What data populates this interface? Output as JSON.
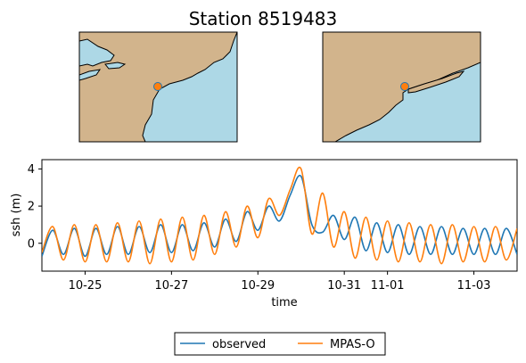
{
  "title": "Station 8519483",
  "colors": {
    "observed": "#1f77b4",
    "model": "#ff7f0e",
    "land": "#d2b48c",
    "water": "#add8e6"
  },
  "maps": [
    {
      "name": "regional-map",
      "marker": "station-marker"
    },
    {
      "name": "local-map",
      "marker": "station-marker"
    }
  ],
  "chart_data": {
    "type": "line",
    "title": "Station 8519483",
    "xlabel": "time",
    "ylabel": "ssh (m)",
    "xlim": [
      "2012-10-24",
      "2012-11-04"
    ],
    "ylim": [
      -1.5,
      4.5
    ],
    "x_ticks": [
      "10-25",
      "10-27",
      "10-29",
      "10-31",
      "11-01",
      "11-03"
    ],
    "x_tick_dates": [
      "2012-10-25",
      "2012-10-27",
      "2012-10-29",
      "2012-10-31",
      "2012-11-01",
      "2012-11-03"
    ],
    "y_ticks": [
      0,
      2,
      4
    ],
    "grid": false,
    "legend": "bottom-center",
    "series": [
      {
        "name": "observed",
        "color": "#1f77b4",
        "x": [
          "2012-10-24T00:00",
          "2012-10-24T06:00",
          "2012-10-24T12:00",
          "2012-10-24T18:00",
          "2012-10-25T00:00",
          "2012-10-25T06:00",
          "2012-10-25T12:00",
          "2012-10-25T18:00",
          "2012-10-26T00:00",
          "2012-10-26T06:00",
          "2012-10-26T12:00",
          "2012-10-26T18:00",
          "2012-10-27T00:00",
          "2012-10-27T06:00",
          "2012-10-27T12:00",
          "2012-10-27T18:00",
          "2012-10-28T00:00",
          "2012-10-28T06:00",
          "2012-10-28T12:00",
          "2012-10-28T18:00",
          "2012-10-29T00:00",
          "2012-10-29T06:00",
          "2012-10-29T12:00",
          "2012-10-29T18:00",
          "2012-10-30T00:00",
          "2012-10-30T06:00",
          "2012-10-30T12:00",
          "2012-10-30T18:00",
          "2012-10-31T00:00",
          "2012-10-31T06:00",
          "2012-10-31T12:00",
          "2012-10-31T18:00",
          "2012-11-01T00:00",
          "2012-11-01T06:00",
          "2012-11-01T12:00",
          "2012-11-01T18:00",
          "2012-11-02T00:00",
          "2012-11-02T06:00",
          "2012-11-02T12:00",
          "2012-11-02T18:00",
          "2012-11-03T00:00",
          "2012-11-03T06:00",
          "2012-11-03T12:00",
          "2012-11-03T18:00",
          "2012-11-04T00:00"
        ],
        "y": [
          -0.7,
          0.7,
          -0.6,
          0.8,
          -0.7,
          0.8,
          -0.6,
          0.9,
          -0.6,
          0.9,
          -0.5,
          1.0,
          -0.5,
          1.0,
          -0.4,
          1.1,
          -0.2,
          1.3,
          0.1,
          1.7,
          0.7,
          2.0,
          1.2,
          2.6,
          3.6,
          1.0,
          0.6,
          1.5,
          0.2,
          1.4,
          -0.4,
          1.1,
          -0.5,
          1.0,
          -0.6,
          0.9,
          -0.6,
          0.9,
          -0.6,
          0.8,
          -0.6,
          0.8,
          -0.6,
          0.8,
          -0.6
        ]
      },
      {
        "name": "MPAS-O",
        "color": "#ff7f0e",
        "x": [
          "2012-10-24T00:00",
          "2012-10-24T06:00",
          "2012-10-24T12:00",
          "2012-10-24T18:00",
          "2012-10-25T00:00",
          "2012-10-25T06:00",
          "2012-10-25T12:00",
          "2012-10-25T18:00",
          "2012-10-26T00:00",
          "2012-10-26T06:00",
          "2012-10-26T12:00",
          "2012-10-26T18:00",
          "2012-10-27T00:00",
          "2012-10-27T06:00",
          "2012-10-27T12:00",
          "2012-10-27T18:00",
          "2012-10-28T00:00",
          "2012-10-28T06:00",
          "2012-10-28T12:00",
          "2012-10-28T18:00",
          "2012-10-29T00:00",
          "2012-10-29T06:00",
          "2012-10-29T12:00",
          "2012-10-29T18:00",
          "2012-10-30T00:00",
          "2012-10-30T06:00",
          "2012-10-30T12:00",
          "2012-10-30T18:00",
          "2012-10-31T00:00",
          "2012-10-31T06:00",
          "2012-10-31T12:00",
          "2012-10-31T18:00",
          "2012-11-01T00:00",
          "2012-11-01T06:00",
          "2012-11-01T12:00",
          "2012-11-01T18:00",
          "2012-11-02T00:00",
          "2012-11-02T06:00",
          "2012-11-02T12:00",
          "2012-11-02T18:00",
          "2012-11-03T00:00",
          "2012-11-03T06:00",
          "2012-11-03T12:00",
          "2012-11-03T18:00",
          "2012-11-04T00:00"
        ],
        "y": [
          -0.5,
          0.9,
          -0.9,
          1.0,
          -1.0,
          1.0,
          -1.0,
          1.1,
          -1.0,
          1.2,
          -1.1,
          1.3,
          -1.0,
          1.4,
          -0.9,
          1.5,
          -0.6,
          1.7,
          -0.2,
          2.0,
          0.3,
          2.4,
          1.5,
          2.9,
          4.0,
          0.5,
          2.7,
          -0.2,
          1.7,
          -0.8,
          1.4,
          -0.9,
          1.2,
          -1.0,
          1.1,
          -1.0,
          1.0,
          -1.1,
          1.0,
          -1.0,
          0.9,
          -1.0,
          0.9,
          -0.9,
          0.8
        ]
      }
    ]
  }
}
